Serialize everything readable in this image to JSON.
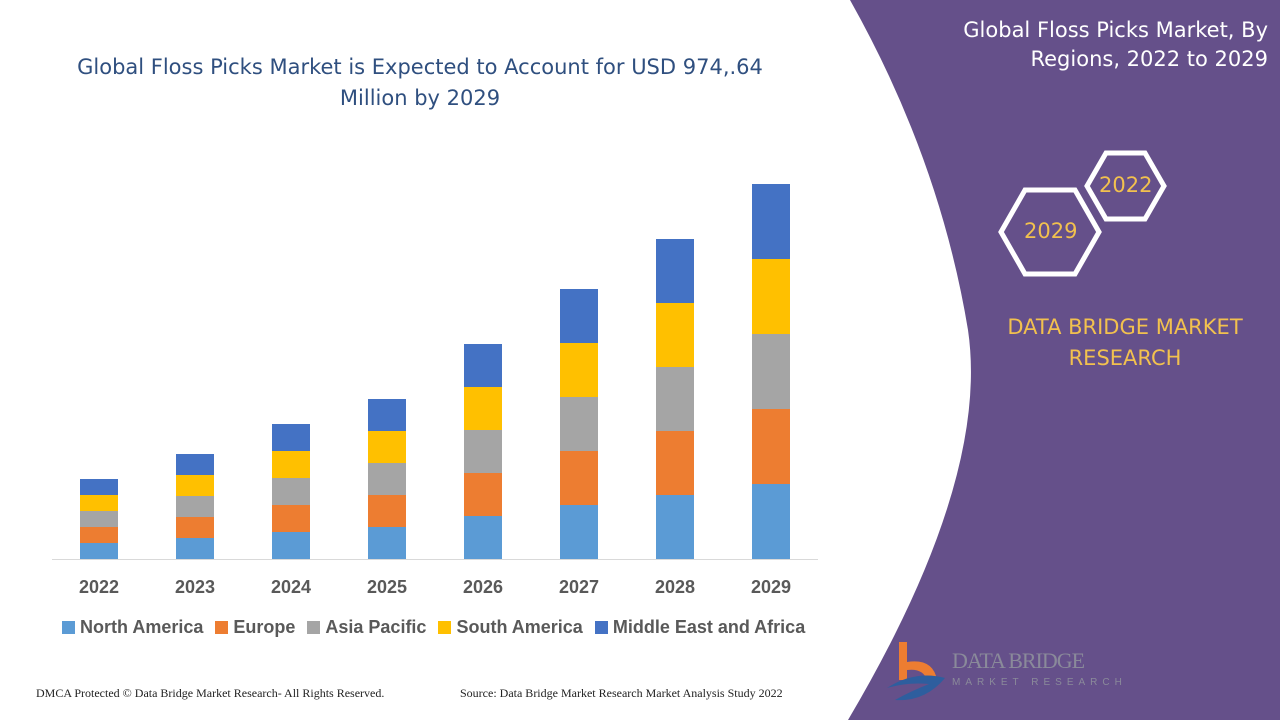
{
  "chart_data": {
    "type": "bar",
    "stacked": true,
    "title": "Global Floss Picks Market is Expected to Account for USD 974,.64 Million by 2029",
    "categories": [
      "2022",
      "2023",
      "2024",
      "2025",
      "2026",
      "2027",
      "2028",
      "2029"
    ],
    "series": [
      {
        "name": "North America",
        "color": "#5b9bd5",
        "values": [
          16,
          21,
          27,
          32,
          43,
          54,
          64,
          75
        ]
      },
      {
        "name": "Europe",
        "color": "#ed7d31",
        "values": [
          16,
          21,
          27,
          32,
          43,
          54,
          64,
          75
        ]
      },
      {
        "name": "Asia Pacific",
        "color": "#a5a5a5",
        "values": [
          16,
          21,
          27,
          32,
          43,
          54,
          64,
          75
        ]
      },
      {
        "name": "South America",
        "color": "#ffc000",
        "values": [
          16,
          21,
          27,
          32,
          43,
          54,
          64,
          75
        ]
      },
      {
        "name": "Middle East and Africa",
        "color": "#4472c4",
        "values": [
          16,
          21,
          27,
          32,
          43,
          54,
          64,
          75
        ]
      }
    ],
    "legend": "bottom",
    "grid": false,
    "ylim": [
      0,
      400
    ]
  },
  "side": {
    "title": "Global Floss Picks Market, By Regions, 2022 to 2029",
    "hex1": "2022",
    "hex2": "2029",
    "brand": "DATA BRIDGE MARKET RESEARCH",
    "panel_color": "#65508a",
    "accent": "#f2c14e"
  },
  "logo": {
    "name": "DATA BRIDGE",
    "sub": "MARKET RESEARCH"
  },
  "footer": {
    "left": "DMCA Protected © Data Bridge Market Research- All Rights Reserved.",
    "right": "Source: Data Bridge Market Research Market Analysis Study 2022"
  }
}
